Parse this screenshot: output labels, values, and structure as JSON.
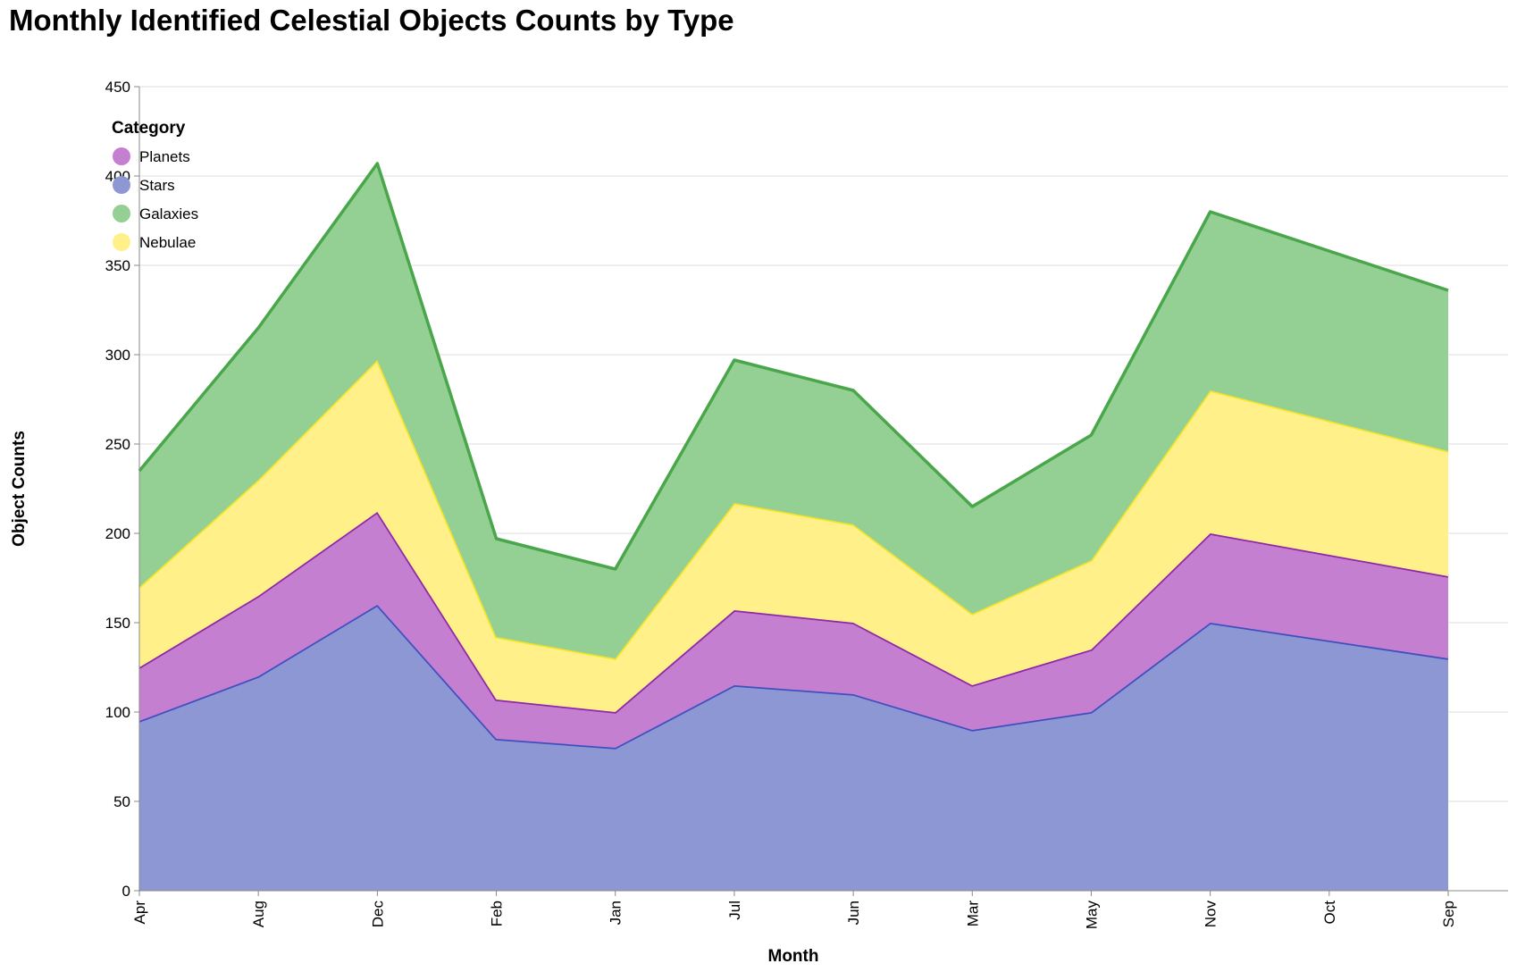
{
  "title": "Monthly Identified Celestial Objects Counts by Type",
  "chart_data": {
    "type": "area",
    "stacked": true,
    "title": "Monthly Identified Celestial Objects Counts by Type",
    "xlabel": "Month",
    "ylabel": "Object Counts",
    "ylim": [
      0,
      450
    ],
    "yticks": [
      0,
      50,
      100,
      150,
      200,
      250,
      300,
      350,
      400,
      450
    ],
    "grid": true,
    "legend_title": "Category",
    "legend_position": "top-left",
    "categories": [
      "Apr",
      "Aug",
      "Dec",
      "Feb",
      "Jan",
      "Jul",
      "Jun",
      "Mar",
      "May",
      "Nov",
      "Oct",
      "Sep"
    ],
    "series": [
      {
        "name": "Stars",
        "color": "#8c97d3",
        "line_color": "#3f4fbf",
        "values": [
          95,
          120,
          160,
          85,
          80,
          115,
          110,
          90,
          100,
          150,
          140,
          130
        ]
      },
      {
        "name": "Planets",
        "color": "#c47fd1",
        "line_color": "#9026a8",
        "values": [
          30,
          45,
          52,
          22,
          20,
          42,
          40,
          25,
          35,
          50,
          48,
          46
        ]
      },
      {
        "name": "Nebulae",
        "color": "#fff08a",
        "line_color": "#f5e52a",
        "values": [
          45,
          65,
          85,
          35,
          30,
          60,
          55,
          40,
          50,
          80,
          75,
          70
        ]
      },
      {
        "name": "Galaxies",
        "color": "#94cf94",
        "line_color": "#4aa64a",
        "values": [
          65,
          85,
          110,
          55,
          50,
          80,
          75,
          60,
          70,
          100,
          95,
          90
        ]
      }
    ],
    "legend_order": [
      "Planets",
      "Stars",
      "Galaxies",
      "Nebulae"
    ]
  }
}
